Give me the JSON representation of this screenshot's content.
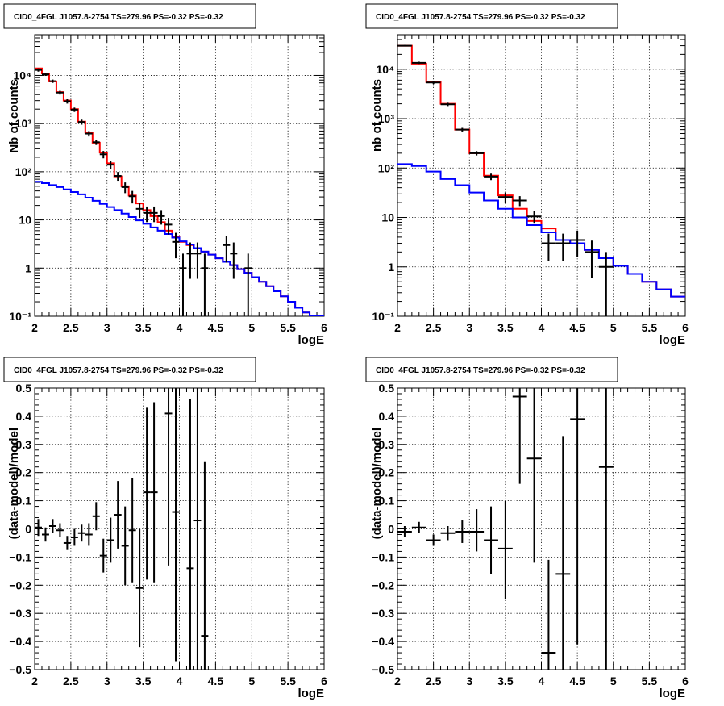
{
  "colors": {
    "total_model": "#ff0000",
    "component_model": "#0000ff",
    "data": "#000000",
    "background": "#ffffff"
  },
  "chart_data": [
    {
      "type": "line",
      "title": "CID0_4FGL J1057.8-2754 TS=279.96 PS=-0.32 PS=-0.32",
      "xlabel": "logE",
      "ylabel": "Nb of counts",
      "xlim": [
        2,
        6
      ],
      "ylim": [
        0.1,
        70000
      ],
      "yscale": "log",
      "grid": true,
      "xticks": [
        2,
        2.5,
        3,
        3.5,
        4,
        4.5,
        5,
        5.5,
        6
      ],
      "xtick_labels": [
        "2",
        "2.5",
        "3",
        "3.5",
        "4",
        "4.5",
        "5",
        "5.5",
        "6"
      ],
      "yticks": [
        0.1,
        1,
        10,
        100,
        1000,
        10000
      ],
      "ytick_labels": [
        "10⁻¹",
        "1",
        "10",
        "10²",
        "10³",
        "10⁴"
      ],
      "bin_edges": [
        2.0,
        2.1,
        2.2,
        2.3,
        2.4,
        2.5,
        2.6,
        2.7,
        2.8,
        2.9,
        3.0,
        3.1,
        3.2,
        3.3,
        3.4,
        3.5,
        3.6,
        3.7,
        3.8,
        3.9,
        4.0,
        4.1,
        4.2,
        4.3,
        4.4,
        4.5,
        4.6,
        4.7,
        4.8,
        4.9,
        5.0,
        5.1,
        5.2,
        5.3,
        5.4,
        5.5,
        5.6,
        5.7,
        5.8,
        5.9,
        6.0
      ],
      "series": [
        {
          "kind": "step",
          "color": "#ff0000",
          "values": [
            14000,
            11000,
            7500,
            4500,
            3000,
            2000,
            1100,
            650,
            400,
            250,
            150,
            80,
            50,
            32,
            22,
            16,
            12,
            9,
            6,
            4.5,
            3.5,
            3,
            2.6,
            2.2,
            1.9,
            1.6,
            1.35,
            1.15,
            0.95,
            0.8,
            0.65,
            0.52,
            0.42,
            0.33,
            0.26,
            0.2,
            0.15,
            0.12,
            0.1,
            0.1
          ]
        },
        {
          "kind": "step",
          "color": "#0000ff",
          "values": [
            62,
            58,
            53,
            48,
            43,
            38,
            34,
            29,
            25,
            21.5,
            18.5,
            16,
            13.5,
            11.5,
            9.8,
            8.3,
            7,
            6,
            5.1,
            4.3,
            3.6,
            3.1,
            2.6,
            2.2,
            1.9,
            1.6,
            1.35,
            1.15,
            0.95,
            0.8,
            0.65,
            0.52,
            0.42,
            0.33,
            0.26,
            0.2,
            0.15,
            0.12,
            0.1,
            0.1
          ]
        },
        {
          "kind": "points",
          "color": "#000000",
          "points": [
            {
              "x": 2.05,
              "y": 13000,
              "lo": 12000,
              "hi": 14000
            },
            {
              "x": 2.15,
              "y": 10500,
              "lo": 9800,
              "hi": 11200
            },
            {
              "x": 2.25,
              "y": 7600,
              "lo": 7000,
              "hi": 8200
            },
            {
              "x": 2.35,
              "y": 4400,
              "lo": 4000,
              "hi": 4800
            },
            {
              "x": 2.45,
              "y": 2900,
              "lo": 2600,
              "hi": 3200
            },
            {
              "x": 2.55,
              "y": 1950,
              "lo": 1750,
              "hi": 2150
            },
            {
              "x": 2.65,
              "y": 1080,
              "lo": 950,
              "hi": 1210
            },
            {
              "x": 2.75,
              "y": 620,
              "lo": 540,
              "hi": 700
            },
            {
              "x": 2.85,
              "y": 410,
              "lo": 360,
              "hi": 460
            },
            {
              "x": 2.95,
              "y": 230,
              "lo": 190,
              "hi": 270
            },
            {
              "x": 3.05,
              "y": 140,
              "lo": 115,
              "hi": 165
            },
            {
              "x": 3.15,
              "y": 82,
              "lo": 65,
              "hi": 99
            },
            {
              "x": 3.25,
              "y": 48,
              "lo": 36,
              "hi": 60
            },
            {
              "x": 3.35,
              "y": 31,
              "lo": 22,
              "hi": 40
            },
            {
              "x": 3.45,
              "y": 17,
              "lo": 11,
              "hi": 23
            },
            {
              "x": 3.55,
              "y": 14,
              "lo": 9,
              "hi": 19
            },
            {
              "x": 3.65,
              "y": 14,
              "lo": 9,
              "hi": 19
            },
            {
              "x": 3.75,
              "y": 12,
              "lo": 8,
              "hi": 16
            },
            {
              "x": 3.85,
              "y": 8,
              "lo": 5,
              "hi": 11
            },
            {
              "x": 3.95,
              "y": 3.5,
              "lo": 1.6,
              "hi": 5.4
            },
            {
              "x": 4.05,
              "y": 1,
              "lo": 0.1,
              "hi": 2
            },
            {
              "x": 4.15,
              "y": 2,
              "lo": 0.6,
              "hi": 3.4
            },
            {
              "x": 4.25,
              "y": 2,
              "lo": 0.6,
              "hi": 3.4
            },
            {
              "x": 4.35,
              "y": 1,
              "lo": 0.1,
              "hi": 2
            },
            {
              "x": 4.65,
              "y": 3,
              "lo": 1.3,
              "hi": 4.7
            },
            {
              "x": 4.75,
              "y": 2,
              "lo": 0.6,
              "hi": 3.4
            },
            {
              "x": 4.95,
              "y": 1,
              "lo": 0.1,
              "hi": 2
            }
          ]
        }
      ]
    },
    {
      "type": "line",
      "title": "CID0_4FGL J1057.8-2754 TS=279.96 PS=-0.32 PS=-0.32",
      "xlabel": "logE",
      "ylabel": "nb of counts",
      "xlim": [
        2,
        6
      ],
      "ylim": [
        0.1,
        50000
      ],
      "yscale": "log",
      "grid": true,
      "xticks": [
        2,
        2.5,
        3,
        3.5,
        4,
        4.5,
        5,
        5.5,
        6
      ],
      "xtick_labels": [
        "2",
        "2.5",
        "3",
        "3.5",
        "4",
        "4.5",
        "5",
        "5.5",
        "6"
      ],
      "yticks": [
        0.1,
        1,
        10,
        100,
        1000,
        10000
      ],
      "ytick_labels": [
        "10⁻¹",
        "1",
        "10",
        "10²",
        "10³",
        "10⁴"
      ],
      "bin_edges": [
        2.0,
        2.2,
        2.4,
        2.6,
        2.8,
        3.0,
        3.2,
        3.4,
        3.6,
        3.8,
        4.0,
        4.2,
        4.4,
        4.6,
        4.8,
        5.0,
        5.2,
        5.4,
        5.6,
        5.8,
        6.0
      ],
      "series": [
        {
          "kind": "step",
          "color": "#ff0000",
          "values": [
            30000,
            13000,
            5500,
            2000,
            600,
            200,
            70,
            28,
            15,
            8.5,
            6,
            3.5,
            3,
            2.2,
            1.5,
            1.05,
            0.72,
            0.5,
            0.35,
            0.25
          ]
        },
        {
          "kind": "step",
          "color": "#0000ff",
          "values": [
            120,
            110,
            85,
            60,
            45,
            32,
            22,
            15,
            10,
            7,
            5,
            3.5,
            3,
            2.2,
            1.5,
            1.05,
            0.72,
            0.5,
            0.35,
            0.25
          ]
        },
        {
          "kind": "points",
          "color": "#000000",
          "points": [
            {
              "x": 2.1,
              "y": 30000,
              "lo": 29000,
              "hi": 31000
            },
            {
              "x": 2.3,
              "y": 13500,
              "lo": 12800,
              "hi": 14200
            },
            {
              "x": 2.5,
              "y": 5400,
              "lo": 5000,
              "hi": 5800
            },
            {
              "x": 2.7,
              "y": 1950,
              "lo": 1800,
              "hi": 2100
            },
            {
              "x": 2.9,
              "y": 600,
              "lo": 550,
              "hi": 650
            },
            {
              "x": 3.1,
              "y": 200,
              "lo": 180,
              "hi": 220
            },
            {
              "x": 3.3,
              "y": 67,
              "lo": 57,
              "hi": 77
            },
            {
              "x": 3.5,
              "y": 26,
              "lo": 20,
              "hi": 32
            },
            {
              "x": 3.7,
              "y": 22,
              "lo": 17,
              "hi": 27
            },
            {
              "x": 3.9,
              "y": 10.5,
              "lo": 7.5,
              "hi": 13.5
            },
            {
              "x": 4.1,
              "y": 3,
              "lo": 1.3,
              "hi": 4.7
            },
            {
              "x": 4.3,
              "y": 3,
              "lo": 1.3,
              "hi": 4.7
            },
            {
              "x": 4.5,
              "y": 3.5,
              "lo": 1.6,
              "hi": 5.4
            },
            {
              "x": 4.7,
              "y": 2,
              "lo": 0.6,
              "hi": 3.4
            },
            {
              "x": 4.9,
              "y": 1,
              "lo": 0.1,
              "hi": 2
            }
          ]
        }
      ]
    },
    {
      "type": "scatter",
      "title": "CID0_4FGL J1057.8-2754 TS=279.96 PS=-0.32 PS=-0.32",
      "xlabel": "logE",
      "ylabel": "(data-model)/model",
      "xlim": [
        2,
        6
      ],
      "ylim": [
        -0.5,
        0.5
      ],
      "yscale": "linear",
      "grid": true,
      "xticks": [
        2,
        2.5,
        3,
        3.5,
        4,
        4.5,
        5,
        5.5,
        6
      ],
      "xtick_labels": [
        "2",
        "2.5",
        "3",
        "3.5",
        "4",
        "4.5",
        "5",
        "5.5",
        "6"
      ],
      "yticks": [
        -0.5,
        -0.4,
        -0.3,
        -0.2,
        -0.1,
        0,
        0.1,
        0.2,
        0.3,
        0.4,
        0.5
      ],
      "ytick_labels": [
        "−0.5",
        "−0.4",
        "−0.3",
        "−0.2",
        "−0.1",
        "0",
        "0.1",
        "0.2",
        "0.3",
        "0.4",
        "0.5"
      ],
      "x_half_width": 0.05,
      "series": [
        {
          "kind": "points",
          "color": "#000000",
          "points": [
            {
              "x": 2.05,
              "y": 0.005,
              "lo": -0.025,
              "hi": 0.035
            },
            {
              "x": 2.15,
              "y": -0.02,
              "lo": -0.045,
              "hi": 0.005
            },
            {
              "x": 2.25,
              "y": 0.01,
              "lo": -0.015,
              "hi": 0.035
            },
            {
              "x": 2.35,
              "y": -0.005,
              "lo": -0.03,
              "hi": 0.02
            },
            {
              "x": 2.45,
              "y": -0.05,
              "lo": -0.075,
              "hi": -0.025
            },
            {
              "x": 2.55,
              "y": -0.03,
              "lo": -0.06,
              "hi": 0.0
            },
            {
              "x": 2.65,
              "y": -0.015,
              "lo": -0.045,
              "hi": 0.015
            },
            {
              "x": 2.75,
              "y": -0.02,
              "lo": -0.06,
              "hi": 0.02
            },
            {
              "x": 2.85,
              "y": 0.045,
              "lo": -0.005,
              "hi": 0.095
            },
            {
              "x": 2.95,
              "y": -0.095,
              "lo": -0.155,
              "hi": -0.035
            },
            {
              "x": 3.05,
              "y": -0.04,
              "lo": -0.12,
              "hi": 0.04
            },
            {
              "x": 3.15,
              "y": 0.05,
              "lo": -0.07,
              "hi": 0.17
            },
            {
              "x": 3.25,
              "y": -0.06,
              "lo": -0.2,
              "hi": 0.08
            },
            {
              "x": 3.35,
              "y": -0.005,
              "lo": -0.19,
              "hi": 0.18
            },
            {
              "x": 3.45,
              "y": -0.21,
              "lo": -0.42,
              "hi": 0.0
            },
            {
              "x": 3.55,
              "y": 0.13,
              "lo": -0.18,
              "hi": 0.43
            },
            {
              "x": 3.65,
              "y": 0.13,
              "lo": -0.19,
              "hi": 0.45
            },
            {
              "x": 3.85,
              "y": 0.41,
              "lo": -0.13,
              "hi": 0.5
            },
            {
              "x": 3.95,
              "y": 0.06,
              "lo": -0.47,
              "hi": 0.5
            },
            {
              "x": 4.15,
              "y": -0.14,
              "lo": -0.5,
              "hi": 0.46
            },
            {
              "x": 4.25,
              "y": 0.03,
              "lo": -0.5,
              "hi": 0.5
            },
            {
              "x": 4.35,
              "y": -0.38,
              "lo": -0.5,
              "hi": 0.24
            }
          ]
        }
      ]
    },
    {
      "type": "scatter",
      "title": "CID0_4FGL J1057.8-2754 TS=279.96 PS=-0.32 PS=-0.32",
      "xlabel": "logE",
      "ylabel": "(data-model)/model",
      "xlim": [
        2,
        6
      ],
      "ylim": [
        -0.5,
        0.5
      ],
      "yscale": "linear",
      "grid": true,
      "xticks": [
        2,
        2.5,
        3,
        3.5,
        4,
        4.5,
        5,
        5.5,
        6
      ],
      "xtick_labels": [
        "2",
        "2.5",
        "3",
        "3.5",
        "4",
        "4.5",
        "5",
        "5.5",
        "6"
      ],
      "yticks": [
        -0.5,
        -0.4,
        -0.3,
        -0.2,
        -0.1,
        0,
        0.1,
        0.2,
        0.3,
        0.4,
        0.5
      ],
      "ytick_labels": [
        "−0.5",
        "−0.4",
        "−0.3",
        "−0.2",
        "−0.1",
        "0",
        "0.1",
        "0.2",
        "0.3",
        "0.4",
        "0.5"
      ],
      "x_half_width": 0.1,
      "series": [
        {
          "kind": "points",
          "color": "#000000",
          "points": [
            {
              "x": 2.1,
              "y": -0.01,
              "lo": -0.03,
              "hi": 0.01
            },
            {
              "x": 2.3,
              "y": 0.005,
              "lo": -0.015,
              "hi": 0.025
            },
            {
              "x": 2.5,
              "y": -0.04,
              "lo": -0.06,
              "hi": -0.02
            },
            {
              "x": 2.7,
              "y": -0.015,
              "lo": -0.04,
              "hi": 0.01
            },
            {
              "x": 2.9,
              "y": -0.01,
              "lo": -0.05,
              "hi": 0.03
            },
            {
              "x": 3.1,
              "y": -0.01,
              "lo": -0.08,
              "hi": 0.07
            },
            {
              "x": 3.3,
              "y": -0.04,
              "lo": -0.16,
              "hi": 0.08
            },
            {
              "x": 3.5,
              "y": -0.07,
              "lo": -0.25,
              "hi": 0.1
            },
            {
              "x": 3.7,
              "y": 0.47,
              "lo": 0.16,
              "hi": 0.5
            },
            {
              "x": 3.9,
              "y": 0.25,
              "lo": -0.12,
              "hi": 0.5
            },
            {
              "x": 4.1,
              "y": -0.44,
              "lo": -0.5,
              "hi": -0.11
            },
            {
              "x": 4.3,
              "y": -0.16,
              "lo": -0.5,
              "hi": 0.33
            },
            {
              "x": 4.5,
              "y": 0.39,
              "lo": -0.41,
              "hi": 0.5
            },
            {
              "x": 4.9,
              "y": 0.22,
              "lo": -0.5,
              "hi": 0.5
            }
          ]
        }
      ]
    }
  ]
}
